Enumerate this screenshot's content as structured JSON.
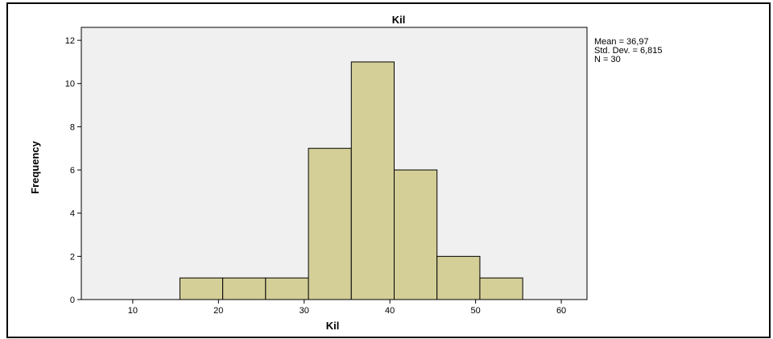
{
  "chart_data": {
    "type": "bar",
    "subtype": "histogram",
    "title": "Kil",
    "xlabel": "Kil",
    "ylabel": "Frequency",
    "xlim": [
      4,
      63
    ],
    "ylim": [
      0,
      12.6
    ],
    "x_ticks": [
      10,
      20,
      30,
      40,
      50,
      60
    ],
    "y_ticks": [
      0,
      2,
      4,
      6,
      8,
      10,
      12
    ],
    "bins": [
      {
        "start": 15.5,
        "end": 20.5,
        "count": 1
      },
      {
        "start": 20.5,
        "end": 25.5,
        "count": 1
      },
      {
        "start": 25.5,
        "end": 30.5,
        "count": 1
      },
      {
        "start": 30.5,
        "end": 35.5,
        "count": 7
      },
      {
        "start": 35.5,
        "end": 40.5,
        "count": 11
      },
      {
        "start": 40.5,
        "end": 45.5,
        "count": 6
      },
      {
        "start": 45.5,
        "end": 50.5,
        "count": 2
      },
      {
        "start": 50.5,
        "end": 55.5,
        "count": 1
      }
    ],
    "grid": false,
    "bar_color": "#d4cf97",
    "plot_background": "#f0f0f0",
    "stats": [
      "Mean = 36,97",
      "Std. Dev. = 6,815",
      "N = 30"
    ]
  }
}
